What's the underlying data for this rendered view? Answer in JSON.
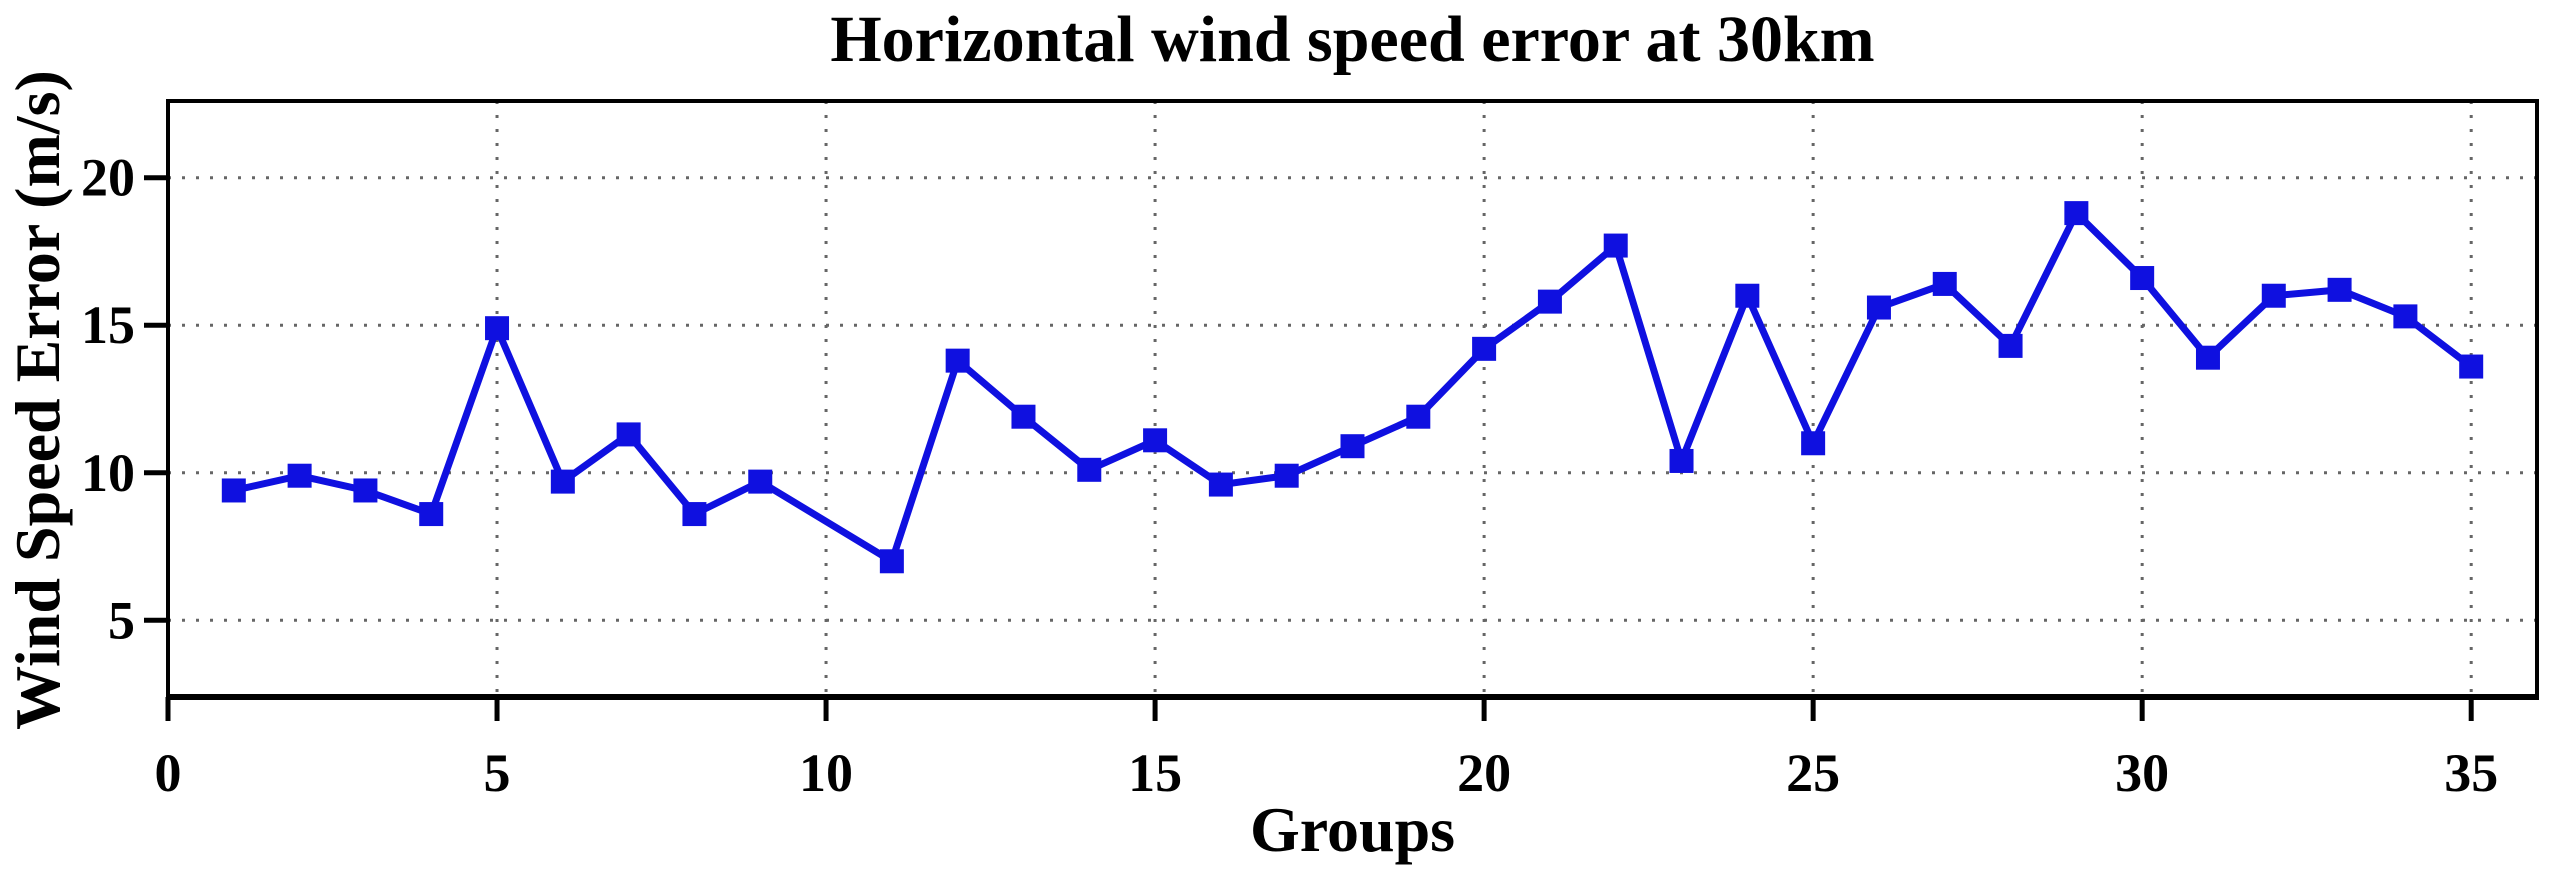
{
  "page": {
    "background": "#ffffff",
    "text_color": "#000000"
  },
  "chart_data": {
    "type": "line",
    "title": "Horizontal wind speed error at 30km",
    "xlabel": "Groups",
    "ylabel": "Wind Speed Error (m/s)",
    "series": [
      {
        "name": "wind speed error at 30km",
        "x": [
          1,
          2,
          3,
          4,
          5,
          6,
          7,
          8,
          9,
          11,
          12,
          13,
          14,
          15,
          16,
          17,
          18,
          19,
          20,
          21,
          22,
          23,
          24,
          25,
          26,
          27,
          28,
          29,
          30,
          31,
          32,
          33,
          34,
          35
        ],
        "y": [
          9.4,
          9.9,
          9.4,
          8.6,
          14.9,
          9.7,
          11.3,
          8.6,
          9.7,
          7.0,
          13.8,
          11.9,
          10.1,
          11.1,
          9.6,
          9.9,
          10.9,
          11.9,
          14.2,
          15.8,
          17.7,
          10.4,
          16.0,
          11.0,
          15.6,
          16.4,
          14.3,
          18.8,
          16.6,
          13.9,
          16.0,
          16.2,
          15.3,
          13.6
        ]
      }
    ],
    "xlim": [
      0,
      36
    ],
    "ylim": [
      2.4,
      22.6
    ],
    "x_ticks": [
      0,
      5,
      10,
      15,
      20,
      25,
      30,
      35
    ],
    "y_ticks": [
      5,
      10,
      15,
      20
    ],
    "grid": true,
    "grid_style": "dotted",
    "legend_position": "none",
    "marker": "square",
    "colors": {
      "line": "#0f10e0",
      "marker": "#0f10e0",
      "grid": "#666666",
      "frame": "#000000",
      "tick_label": "#000000"
    }
  }
}
